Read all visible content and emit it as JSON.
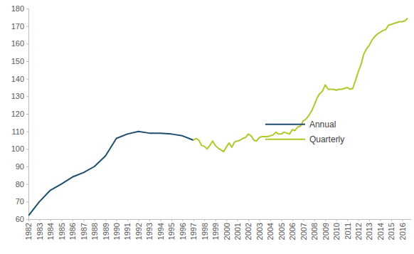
{
  "chart_data": {
    "type": "line",
    "xlim": [
      1982,
      2016.75
    ],
    "xticks": [
      1982,
      1983,
      1984,
      1985,
      1986,
      1987,
      1988,
      1989,
      1990,
      1991,
      1992,
      1993,
      1994,
      1995,
      1996,
      1997,
      1998,
      1999,
      2000,
      2001,
      2002,
      2003,
      2004,
      2005,
      2006,
      2007,
      2008,
      2009,
      2010,
      2011,
      2012,
      2013,
      2014,
      2015,
      2016
    ],
    "ylim": [
      60,
      180
    ],
    "yticks": [
      60,
      70,
      80,
      90,
      100,
      110,
      120,
      130,
      140,
      150,
      160,
      170,
      180
    ],
    "grid": false,
    "legend": "right",
    "series": [
      {
        "name": "Annual",
        "color": "#1d4e6f",
        "x": [
          1982,
          1983,
          1984,
          1985,
          1986,
          1987,
          1988,
          1989,
          1990,
          1991,
          1992,
          1993,
          1994,
          1995,
          1996,
          1997
        ],
        "values": [
          62,
          70,
          76.5,
          80,
          84,
          86.5,
          90,
          96,
          106,
          108.5,
          110,
          109,
          109,
          108.5,
          107.5,
          105
        ]
      },
      {
        "name": "Quarterly",
        "color": "#b3c62a",
        "x": [
          1997,
          1997.25,
          1997.5,
          1997.75,
          1998,
          1998.25,
          1998.5,
          1998.75,
          1999,
          1999.25,
          1999.5,
          1999.75,
          2000,
          2000.25,
          2000.5,
          2000.75,
          2001,
          2001.25,
          2001.5,
          2001.75,
          2002,
          2002.25,
          2002.5,
          2002.75,
          2003,
          2003.25,
          2003.5,
          2003.75,
          2004,
          2004.25,
          2004.5,
          2004.75,
          2005,
          2005.25,
          2005.5,
          2005.75,
          2006,
          2006.25,
          2006.5,
          2006.75,
          2007,
          2007.25,
          2007.5,
          2007.75,
          2008,
          2008.25,
          2008.5,
          2008.75,
          2009,
          2009.25,
          2009.5,
          2009.75,
          2010,
          2010.25,
          2010.5,
          2010.75,
          2011,
          2011.25,
          2011.5,
          2011.75,
          2012,
          2012.25,
          2012.5,
          2012.75,
          2013,
          2013.25,
          2013.5,
          2013.75,
          2014,
          2014.25,
          2014.5,
          2014.75,
          2015,
          2015.25,
          2015.5,
          2015.75,
          2016,
          2016.25,
          2016.5
        ],
        "values": [
          105,
          106,
          105,
          102,
          101.5,
          100,
          102,
          104.5,
          102,
          100.5,
          99.5,
          98.5,
          101,
          103.5,
          101,
          104,
          104.5,
          105,
          106,
          106.5,
          108.5,
          107.5,
          105,
          104.5,
          106.5,
          107,
          107,
          107,
          107.5,
          108,
          109.5,
          108.5,
          108.5,
          109.5,
          109,
          108.5,
          111,
          110.5,
          112.5,
          113,
          116,
          117,
          119,
          121.5,
          125,
          129,
          131.5,
          133,
          136.5,
          134,
          134,
          134,
          133.5,
          134,
          134,
          134.5,
          135,
          134,
          134.5,
          139,
          144,
          148,
          154,
          157,
          159,
          162,
          164,
          165.5,
          166.5,
          167.5,
          168,
          170.5,
          171,
          171.5,
          172,
          172.5,
          172.5,
          173,
          174.5
        ]
      }
    ]
  }
}
